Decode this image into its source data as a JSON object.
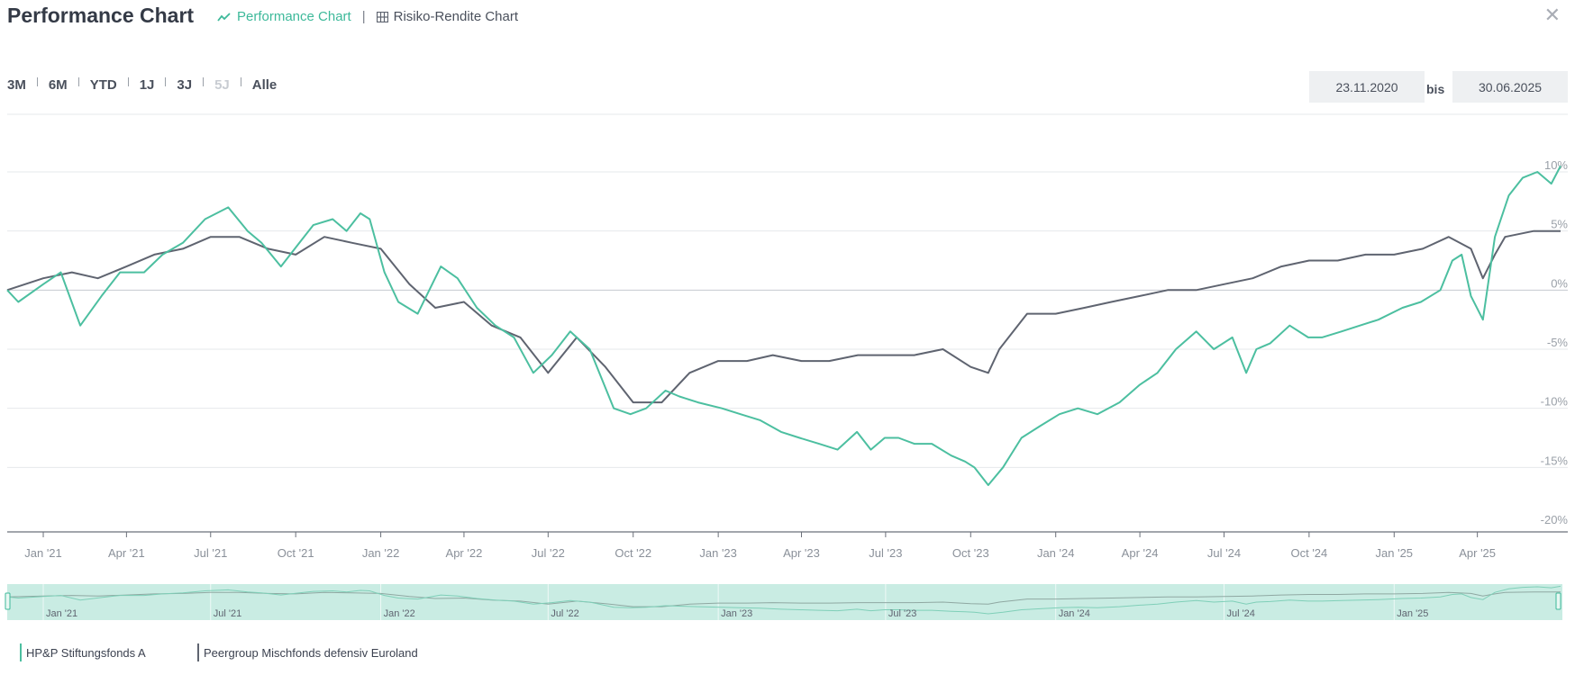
{
  "header": {
    "title": "Performance Chart",
    "tabs": [
      {
        "label": "Performance Chart",
        "icon": "line-chart-icon",
        "active": true
      },
      {
        "label": "Risiko-Rendite Chart",
        "icon": "grid-table-icon",
        "active": false
      }
    ],
    "close_icon": "close-icon"
  },
  "range_buttons": [
    {
      "label": "3M",
      "enabled": true
    },
    {
      "label": "6M",
      "enabled": true
    },
    {
      "label": "YTD",
      "enabled": true
    },
    {
      "label": "1J",
      "enabled": true
    },
    {
      "label": "3J",
      "enabled": true
    },
    {
      "label": "5J",
      "enabled": false
    },
    {
      "label": "Alle",
      "enabled": true
    }
  ],
  "date_range": {
    "from": "23.11.2020",
    "separator": "bis",
    "to": "30.06.2025"
  },
  "colors": {
    "fund": "#4cbfa0",
    "peer": "#5f6470",
    "navigator_fill": "#c9ece3",
    "accent": "#3db99a"
  },
  "chart_data": {
    "type": "line",
    "x_type": "date",
    "x_range": [
      "2020-11-23",
      "2025-06-30"
    ],
    "ylim": [
      -20,
      10
    ],
    "y_ticks": [
      "10%",
      "5%",
      "0%",
      "-5%",
      "-10%",
      "-15%",
      "-20%"
    ],
    "x_tick_labels": [
      "Jan '21",
      "Apr '21",
      "Jul '21",
      "Oct '21",
      "Jan '22",
      "Apr '22",
      "Jul '22",
      "Oct '22",
      "Jan '23",
      "Apr '23",
      "Jul '23",
      "Oct '23",
      "Jan '24",
      "Apr '24",
      "Jul '24",
      "Oct '24",
      "Jan '25",
      "Apr '25"
    ],
    "navigator_tick_labels": [
      "Jan '21",
      "Jul '21",
      "Jan '22",
      "Jul '22",
      "Jan '23",
      "Jul '23",
      "Jan '24",
      "Jul '24",
      "Jan '25"
    ],
    "grid": true,
    "legend_position": "bottom-left",
    "series": [
      {
        "name": "HP&P Stiftungsfonds A",
        "color": "#4cbfa0",
        "x": [
          "2020-11-23",
          "2020-12-05",
          "2021-01-01",
          "2021-01-20",
          "2021-02-10",
          "2021-03-05",
          "2021-03-25",
          "2021-04-20",
          "2021-05-10",
          "2021-06-01",
          "2021-06-25",
          "2021-07-20",
          "2021-08-10",
          "2021-08-25",
          "2021-09-15",
          "2021-10-05",
          "2021-10-20",
          "2021-11-10",
          "2021-11-25",
          "2021-12-10",
          "2021-12-20",
          "2022-01-05",
          "2022-01-20",
          "2022-02-10",
          "2022-03-07",
          "2022-03-25",
          "2022-04-15",
          "2022-05-05",
          "2022-05-25",
          "2022-06-15",
          "2022-07-05",
          "2022-07-25",
          "2022-08-15",
          "2022-09-10",
          "2022-09-28",
          "2022-10-15",
          "2022-11-05",
          "2022-11-20",
          "2022-12-10",
          "2023-01-05",
          "2023-01-25",
          "2023-02-15",
          "2023-03-10",
          "2023-03-30",
          "2023-04-20",
          "2023-05-10",
          "2023-05-31",
          "2023-06-15",
          "2023-06-30",
          "2023-07-15",
          "2023-08-01",
          "2023-08-20",
          "2023-09-10",
          "2023-09-25",
          "2023-10-05",
          "2023-10-20",
          "2023-11-05",
          "2023-11-25",
          "2023-12-15",
          "2024-01-05",
          "2024-01-25",
          "2024-02-15",
          "2024-03-10",
          "2024-04-01",
          "2024-04-20",
          "2024-05-10",
          "2024-06-01",
          "2024-06-20",
          "2024-07-10",
          "2024-07-25",
          "2024-08-05",
          "2024-08-20",
          "2024-09-10",
          "2024-09-30",
          "2024-10-15",
          "2024-11-05",
          "2024-11-25",
          "2024-12-15",
          "2025-01-10",
          "2025-01-30",
          "2025-02-20",
          "2025-03-05",
          "2025-03-15",
          "2025-03-25",
          "2025-04-07",
          "2025-04-20",
          "2025-05-05",
          "2025-05-20",
          "2025-06-05",
          "2025-06-20",
          "2025-06-30"
        ],
        "y": [
          0.0,
          -1.0,
          0.5,
          1.5,
          -3.0,
          -0.5,
          1.5,
          1.5,
          3.0,
          4.0,
          6.0,
          7.0,
          5.0,
          4.0,
          2.0,
          4.0,
          5.5,
          6.0,
          5.0,
          6.5,
          6.0,
          1.5,
          -1.0,
          -2.0,
          2.0,
          1.0,
          -1.5,
          -3.0,
          -4.0,
          -7.0,
          -5.5,
          -3.5,
          -5.0,
          -10.0,
          -10.5,
          -10.0,
          -8.5,
          -9.0,
          -9.5,
          -10.0,
          -10.5,
          -11.0,
          -12.0,
          -12.5,
          -13.0,
          -13.5,
          -12.0,
          -13.5,
          -12.5,
          -12.5,
          -13.0,
          -13.0,
          -14.0,
          -14.5,
          -15.0,
          -16.5,
          -15.0,
          -12.5,
          -11.5,
          -10.5,
          -10.0,
          -10.5,
          -9.5,
          -8.0,
          -7.0,
          -5.0,
          -3.5,
          -5.0,
          -4.0,
          -7.0,
          -5.0,
          -4.5,
          -3.0,
          -4.0,
          -4.0,
          -3.5,
          -3.0,
          -2.5,
          -1.5,
          -1.0,
          0.0,
          2.5,
          3.0,
          -0.5,
          -2.5,
          4.5,
          8.0,
          9.5,
          10.0,
          9.0,
          10.5
        ]
      },
      {
        "name": "Peergroup Mischfonds defensiv Euroland",
        "color": "#5f6470",
        "x": [
          "2020-11-23",
          "2021-01-01",
          "2021-02-01",
          "2021-03-01",
          "2021-04-01",
          "2021-05-01",
          "2021-06-01",
          "2021-07-01",
          "2021-08-01",
          "2021-09-01",
          "2021-10-01",
          "2021-11-01",
          "2021-12-01",
          "2022-01-01",
          "2022-02-01",
          "2022-03-01",
          "2022-04-01",
          "2022-05-01",
          "2022-06-01",
          "2022-07-01",
          "2022-08-01",
          "2022-09-01",
          "2022-10-01",
          "2022-11-01",
          "2022-12-01",
          "2023-01-01",
          "2023-02-01",
          "2023-03-01",
          "2023-04-01",
          "2023-05-01",
          "2023-06-01",
          "2023-07-01",
          "2023-08-01",
          "2023-09-01",
          "2023-10-01",
          "2023-10-20",
          "2023-11-01",
          "2023-12-01",
          "2024-01-01",
          "2024-02-01",
          "2024-03-01",
          "2024-04-01",
          "2024-05-01",
          "2024-06-01",
          "2024-07-01",
          "2024-08-01",
          "2024-09-01",
          "2024-10-01",
          "2024-11-01",
          "2024-12-01",
          "2025-01-01",
          "2025-02-01",
          "2025-03-01",
          "2025-03-25",
          "2025-04-07",
          "2025-04-20",
          "2025-05-01",
          "2025-06-01",
          "2025-06-30"
        ],
        "y": [
          0.0,
          1.0,
          1.5,
          1.0,
          2.0,
          3.0,
          3.5,
          4.5,
          4.5,
          3.5,
          3.0,
          4.5,
          4.0,
          3.5,
          0.5,
          -1.5,
          -1.0,
          -3.0,
          -4.0,
          -7.0,
          -4.0,
          -6.5,
          -9.5,
          -9.5,
          -7.0,
          -6.0,
          -6.0,
          -5.5,
          -6.0,
          -6.0,
          -5.5,
          -5.5,
          -5.5,
          -5.0,
          -6.5,
          -7.0,
          -5.0,
          -2.0,
          -2.0,
          -1.5,
          -1.0,
          -0.5,
          0.0,
          0.0,
          0.5,
          1.0,
          2.0,
          2.5,
          2.5,
          3.0,
          3.0,
          3.5,
          4.5,
          3.5,
          1.0,
          3.0,
          4.5,
          5.0,
          5.0
        ]
      }
    ]
  },
  "legend": [
    {
      "label": "HP&P Stiftungsfonds A"
    },
    {
      "label": "Peergroup Mischfonds defensiv Euroland"
    }
  ]
}
